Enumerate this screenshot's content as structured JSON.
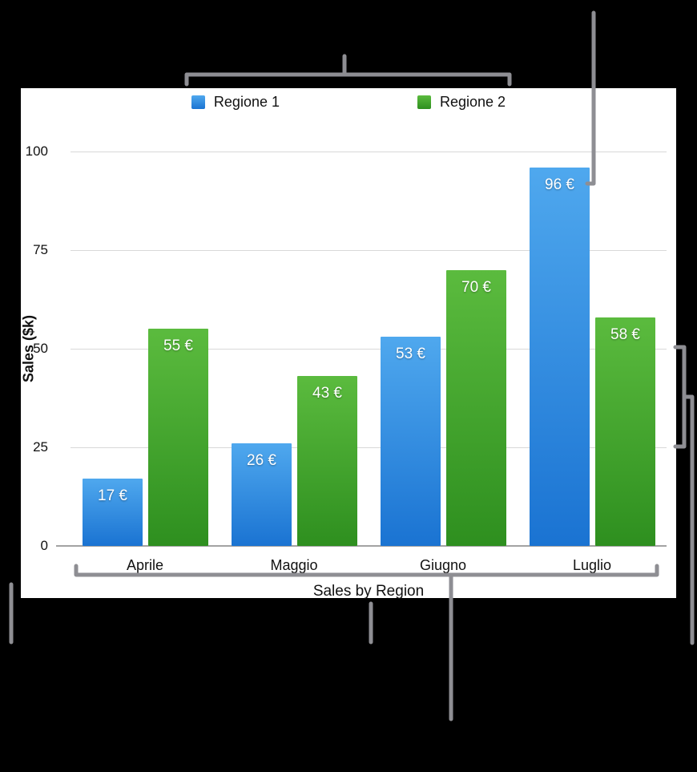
{
  "canvas": {
    "background": "#000000",
    "panel_background": "#ffffff",
    "callout_color": "#8e8e93"
  },
  "chart_data": {
    "type": "bar",
    "title": "Sales by Region",
    "ylabel": "Sales ($k)",
    "categories": [
      "Aprile",
      "Maggio",
      "Giugno",
      "Luglio"
    ],
    "series": [
      {
        "name": "Regione 1",
        "color_top": "#4fa8ee",
        "color_bottom": "#1a73d2",
        "values": [
          17,
          26,
          53,
          96
        ],
        "value_labels": [
          "17 €",
          "26 €",
          "53 €",
          "96 €"
        ]
      },
      {
        "name": "Regione 2",
        "color_top": "#5bbb3e",
        "color_bottom": "#2e8f1f",
        "values": [
          55,
          43,
          70,
          58
        ],
        "value_labels": [
          "55 €",
          "43 €",
          "70 €",
          "58 €"
        ]
      }
    ],
    "y_ticks": [
      0,
      25,
      50,
      75,
      100
    ],
    "ylim": [
      0,
      100
    ],
    "grid": true,
    "legend_position": "top"
  }
}
